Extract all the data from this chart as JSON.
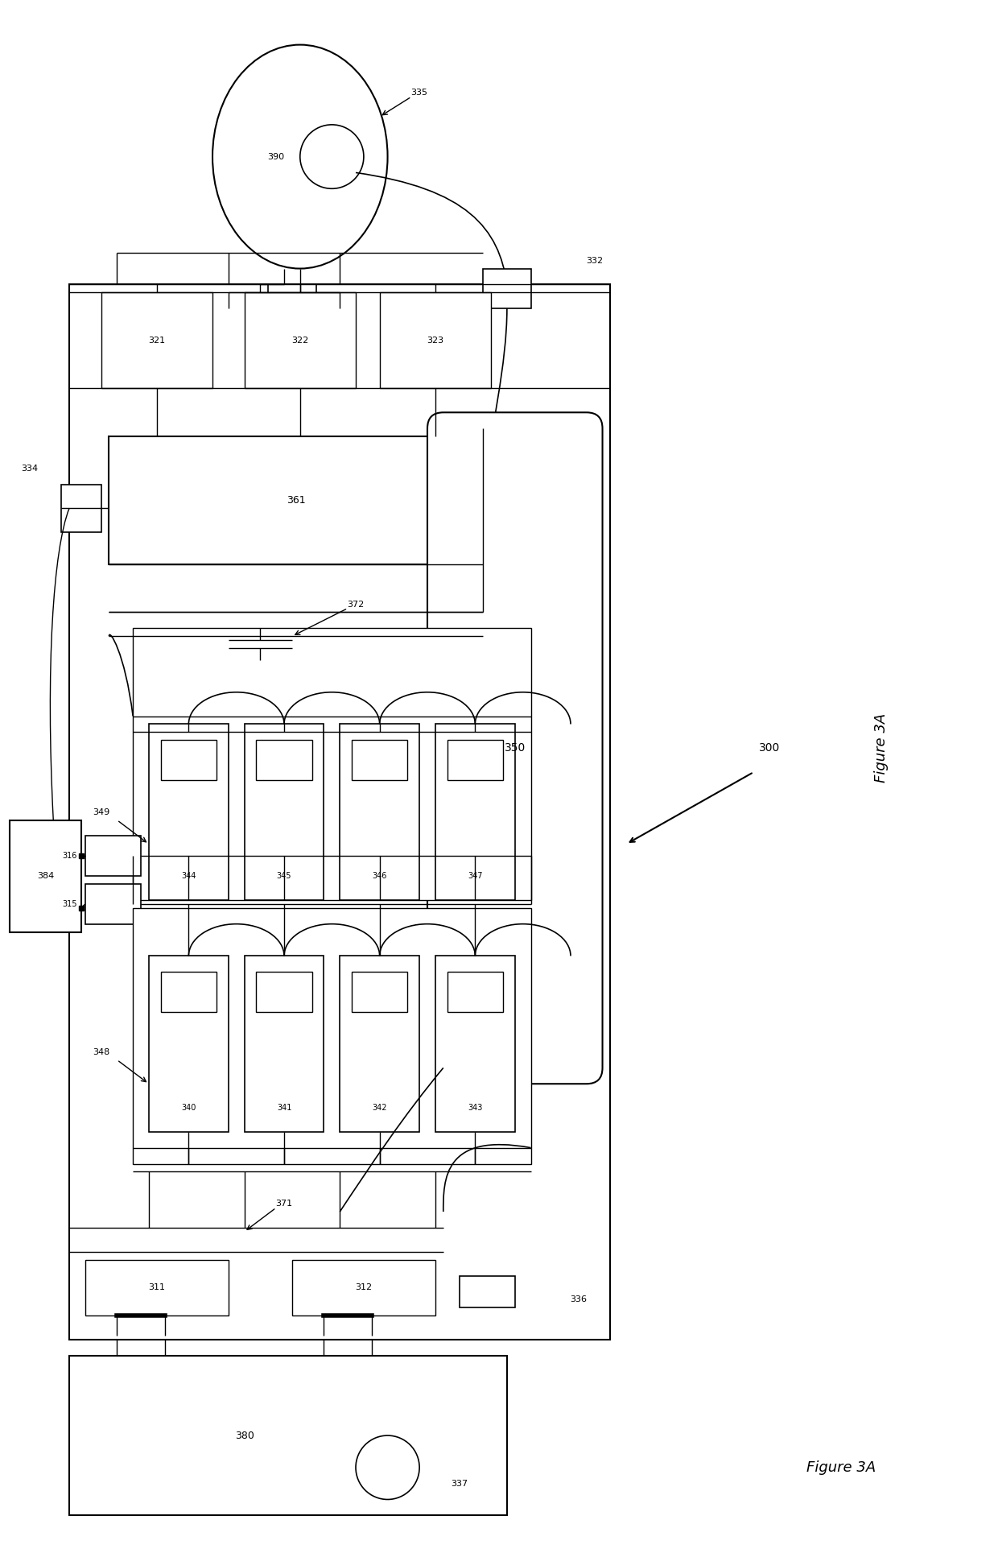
{
  "title": "Figure 3A",
  "bg_color": "#ffffff",
  "line_color": "#000000",
  "fig_width": 12.4,
  "fig_height": 19.29,
  "dpi": 100
}
